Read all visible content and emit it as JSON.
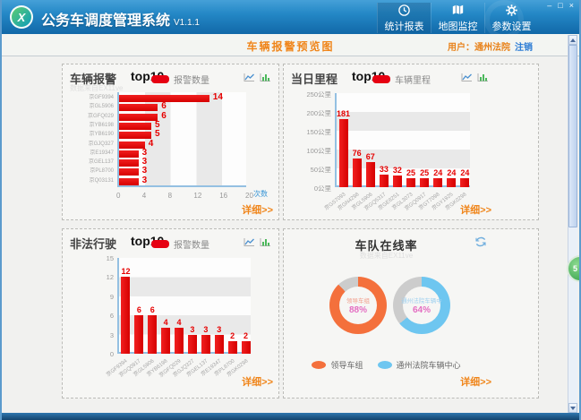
{
  "window": {
    "title": "公务车调度管理系统",
    "version": "V1.1.1",
    "logo_glyph": "X",
    "controls": {
      "minimize": "–",
      "maximize": "□",
      "close": "×"
    }
  },
  "nav": {
    "items": [
      {
        "label": "统计报表",
        "icon": "clock-icon"
      },
      {
        "label": "地图监控",
        "icon": "map-icon"
      },
      {
        "label": "参数设置",
        "icon": "gear-icon"
      }
    ]
  },
  "subheader": {
    "page_title": "车辆报警预览图",
    "user_prefix": "用户：",
    "user_name": "通州法院",
    "logout_label": "注销"
  },
  "panels": {
    "alarm": {
      "title": "车辆报警",
      "rank": "top10",
      "legend_label": "报警数量",
      "source_note": "数据来自EX11ve",
      "detail_label": "详细>>"
    },
    "mileage": {
      "title": "当日里程",
      "rank": "top10",
      "legend_label": "车辆里程",
      "detail_label": "详细>>"
    },
    "illegal": {
      "title": "非法行驶",
      "rank": "top10",
      "legend_label": "报警数量",
      "detail_label": "详细>>"
    },
    "online": {
      "title": "车队在线率",
      "source_note": "数据来自EX11ve",
      "detail_label": "详细>>",
      "donuts": [
        {
          "name": "领导车组",
          "pct_label": "88%",
          "name_color": "#f2a08e"
        },
        {
          "name": "通州法院车辆中",
          "pct_label": "64%",
          "name_color": "#9fd0ef"
        }
      ],
      "legend": [
        {
          "label": "领导车组",
          "color": "#f4703c"
        },
        {
          "label": "通州法院车辆中心",
          "color": "#6ec6f0"
        }
      ]
    }
  },
  "floating_badge": {
    "label": "5"
  },
  "colors": {
    "bar_red": "#e60012",
    "accent_orange": "#f0851a",
    "link_blue": "#2b7bd4",
    "donut_orange": "#f4703c",
    "donut_blue": "#6ec6f0",
    "donut_grey": "#cccccc",
    "pct_pink": "#e46ec2",
    "titlebar_blue": "#1168a8"
  },
  "chart_data": [
    {
      "type": "bar",
      "orientation": "horizontal",
      "title": "车辆报警 top10",
      "legend": [
        "报警数量"
      ],
      "bar_color": "#e60012",
      "categories": [
        "京GF9394",
        "京GL5906",
        "京GFQ029",
        "京YB6198",
        "京YB6190",
        "京GJQ327",
        "京E19347",
        "京GEL137",
        "京PL8700",
        "京Q03131"
      ],
      "values": [
        14,
        6,
        6,
        5,
        5,
        4,
        3,
        3,
        3,
        3
      ],
      "xlabel": "次数",
      "xlim": [
        0,
        20
      ],
      "x_ticks": [
        0,
        4,
        8,
        12,
        16,
        20
      ]
    },
    {
      "type": "bar",
      "orientation": "vertical",
      "title": "当日里程 top10",
      "legend": [
        "车辆里程"
      ],
      "bar_color": "#e60012",
      "categories": [
        "京GS7093",
        "京GN4298",
        "京GL5906",
        "京GQ5317",
        "京GE8251",
        "京GL3073",
        "京GQ0917",
        "京GT7098",
        "京GY1925",
        "京GK0298"
      ],
      "values": [
        181,
        76,
        67,
        33,
        32,
        25,
        25,
        24,
        24,
        24
      ],
      "ylim": [
        0,
        250
      ],
      "y_ticks": [
        "0公里",
        "50公里",
        "100公里",
        "150公里",
        "200公里",
        "250公里"
      ]
    },
    {
      "type": "bar",
      "orientation": "vertical",
      "title": "非法行驶 top10",
      "legend": [
        "报警数量"
      ],
      "bar_color": "#e60012",
      "categories": [
        "京GF9394",
        "京GQ0917",
        "京GL5906",
        "京YB6198",
        "京GFQ029",
        "京GJQ327",
        "京GEL137",
        "京E19347",
        "京PL8700",
        "京GK0298"
      ],
      "values": [
        12,
        6,
        6,
        4,
        4,
        3,
        3,
        3,
        2,
        2
      ],
      "ylim": [
        0,
        15
      ],
      "y_ticks": [
        "0",
        "3",
        "6",
        "9",
        "12",
        "15"
      ]
    },
    {
      "type": "donut",
      "title": "车队在线率",
      "remainder_color": "#cccccc",
      "series": [
        {
          "name": "领导车组",
          "value": 88,
          "color": "#f4703c"
        },
        {
          "name": "通州法院车辆中心",
          "value": 64,
          "color": "#6ec6f0"
        }
      ]
    }
  ]
}
